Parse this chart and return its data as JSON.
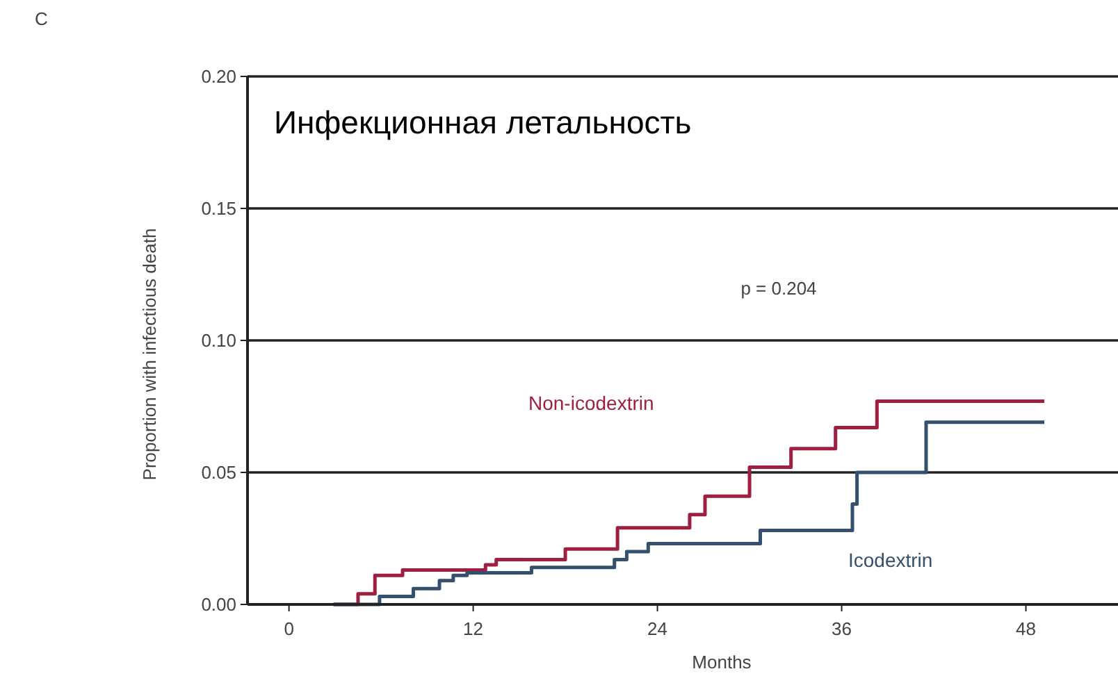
{
  "chart_data": {
    "type": "step",
    "title": "Инфекционная  летальность",
    "xlabel": "Months",
    "ylabel": "Proportion with infectious death",
    "annotations": [
      "C",
      "p = 0.204"
    ],
    "xlim": [
      -2.7,
      54
    ],
    "ylim": [
      0,
      0.2
    ],
    "xticks": [
      0,
      12,
      24,
      36,
      48
    ],
    "yticks": [
      {
        "value": 0,
        "label": "0.00"
      },
      {
        "value": 0.05,
        "label": "0.05"
      },
      {
        "value": 0.1,
        "label": "0.10"
      },
      {
        "value": 0.15,
        "label": "0.15"
      },
      {
        "value": 0.2,
        "label": "0.20"
      }
    ],
    "grid": "y",
    "marker": "none",
    "line_style": "solid",
    "series": [
      {
        "name": "Non-icodextrin",
        "color": "#9e1f3f",
        "x": [
          2.9,
          4.5,
          5.6,
          7.4,
          12.8,
          13.5,
          18.0,
          21.4,
          26.1,
          27.1,
          30.0,
          32.7,
          35.6,
          38.3,
          49.2
        ],
        "values": [
          0,
          0.004,
          0.011,
          0.013,
          0.015,
          0.017,
          0.021,
          0.029,
          0.034,
          0.041,
          0.052,
          0.059,
          0.067,
          0.077,
          0.077
        ]
      },
      {
        "name": "Icodextrin",
        "color": "#34506e",
        "x": [
          2.9,
          5.9,
          8.1,
          9.8,
          10.7,
          11.6,
          15.8,
          21.2,
          22.0,
          23.4,
          30.7,
          36.7,
          37.0,
          41.5,
          49.2
        ],
        "values": [
          0,
          0.003,
          0.006,
          0.009,
          0.011,
          0.012,
          0.014,
          0.017,
          0.02,
          0.023,
          0.028,
          0.038,
          0.05,
          0.069,
          0.069
        ]
      }
    ]
  }
}
